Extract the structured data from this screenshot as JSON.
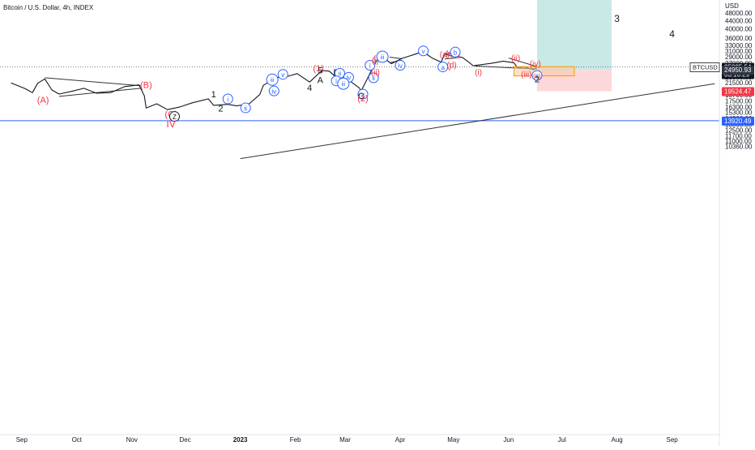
{
  "header": {
    "symbol_title": "Bitcoin / U.S. Dollar, 4h, INDEX"
  },
  "colors": {
    "price_line": "#131722",
    "wave_red": "#f23645",
    "wave_blue": "#2962ff",
    "target_fill": "#b2dfdb",
    "stop_fill": "#fccbcd",
    "box_fill": "#f7c8a3",
    "box_border": "#ff9800",
    "hline_blue": "#2962ff",
    "current_price_bg": "#131722",
    "entry_bg": "#2f3645",
    "stop_bg": "#f23645",
    "hline_bg": "#2962ff"
  },
  "chart_data": {
    "type": "line",
    "ticker_badge": "BTCUSD",
    "y_axis_unit": "USD",
    "y_scale": "log",
    "y_ticks": [
      "48000.00",
      "44000.00",
      "40000.00",
      "36000.00",
      "33000.00",
      "31000.00",
      "29000.00",
      "27000.00",
      "25000.00",
      "23000.00",
      "21500.00",
      "19900.00",
      "18700.00",
      "17500.00",
      "16300.00",
      "15300.00",
      "14300.00",
      "13300.00",
      "12500.00",
      "11700.00",
      "11000.00",
      "10360.00"
    ],
    "x_ticks": [
      "Sep",
      "Oct",
      "Nov",
      "Dec",
      "2023",
      "Feb",
      "Mar",
      "Apr",
      "May",
      "Jun",
      "Jul",
      "Aug",
      "Sep"
    ],
    "price_labels": {
      "current": {
        "value": "25835.54",
        "countdown": "03:10:29"
      },
      "entry": "24950.93",
      "stop": "19524.47",
      "hline": "13920.49"
    },
    "series": [
      {
        "values": [
          {
            "x": "2022-08-25",
            "y": 21500
          },
          {
            "x": "2022-09-02",
            "y": 20100
          },
          {
            "x": "2022-09-06",
            "y": 19200
          },
          {
            "x": "2022-09-09",
            "y": 21400
          },
          {
            "x": "2022-09-13",
            "y": 22500
          },
          {
            "x": "2022-09-17",
            "y": 19800
          },
          {
            "x": "2022-09-21",
            "y": 18900
          },
          {
            "x": "2022-09-28",
            "y": 19500
          },
          {
            "x": "2022-10-05",
            "y": 20200
          },
          {
            "x": "2022-10-12",
            "y": 19100
          },
          {
            "x": "2022-10-20",
            "y": 19200
          },
          {
            "x": "2022-10-28",
            "y": 20600
          },
          {
            "x": "2022-11-05",
            "y": 21000
          },
          {
            "x": "2022-11-08",
            "y": 18500
          },
          {
            "x": "2022-11-09",
            "y": 16100
          },
          {
            "x": "2022-11-15",
            "y": 16900
          },
          {
            "x": "2022-11-21",
            "y": 15800
          },
          {
            "x": "2022-11-28",
            "y": 16300
          },
          {
            "x": "2022-12-05",
            "y": 17100
          },
          {
            "x": "2022-12-14",
            "y": 17900
          },
          {
            "x": "2022-12-17",
            "y": 16600
          },
          {
            "x": "2022-12-25",
            "y": 16800
          },
          {
            "x": "2022-12-30",
            "y": 16500
          },
          {
            "x": "2023-01-06",
            "y": 16900
          },
          {
            "x": "2023-01-12",
            "y": 18800
          },
          {
            "x": "2023-01-14",
            "y": 20900
          },
          {
            "x": "2023-01-21",
            "y": 22800
          },
          {
            "x": "2023-01-28",
            "y": 23200
          },
          {
            "x": "2023-02-02",
            "y": 23900
          },
          {
            "x": "2023-02-09",
            "y": 21700
          },
          {
            "x": "2023-02-16",
            "y": 24800
          },
          {
            "x": "2023-02-20",
            "y": 24600
          },
          {
            "x": "2023-02-24",
            "y": 22900
          },
          {
            "x": "2023-02-28",
            "y": 23500
          },
          {
            "x": "2023-03-03",
            "y": 22200
          },
          {
            "x": "2023-03-09",
            "y": 20300
          },
          {
            "x": "2023-03-10",
            "y": 19600
          },
          {
            "x": "2023-03-13",
            "y": 22100
          },
          {
            "x": "2023-03-16",
            "y": 25000
          },
          {
            "x": "2023-03-19",
            "y": 28000
          },
          {
            "x": "2023-03-23",
            "y": 28500
          },
          {
            "x": "2023-03-27",
            "y": 26800
          },
          {
            "x": "2023-04-02",
            "y": 28500
          },
          {
            "x": "2023-04-11",
            "y": 30200
          },
          {
            "x": "2023-04-14",
            "y": 30700
          },
          {
            "x": "2023-04-19",
            "y": 28600
          },
          {
            "x": "2023-04-24",
            "y": 27300
          },
          {
            "x": "2023-04-26",
            "y": 29900
          },
          {
            "x": "2023-04-30",
            "y": 29300
          },
          {
            "x": "2023-05-06",
            "y": 28800
          },
          {
            "x": "2023-05-10",
            "y": 27100
          },
          {
            "x": "2023-05-12",
            "y": 26200
          },
          {
            "x": "2023-05-22",
            "y": 26900
          },
          {
            "x": "2023-05-29",
            "y": 27600
          },
          {
            "x": "2023-06-04",
            "y": 27100
          },
          {
            "x": "2023-06-06",
            "y": 25600
          },
          {
            "x": "2023-06-10",
            "y": 25800
          },
          {
            "x": "2023-06-15",
            "y": 25000
          },
          {
            "x": "2023-06-17",
            "y": 25800
          }
        ]
      }
    ],
    "trendlines": [
      {
        "points": [
          {
            "x": "2022-09-13",
            "y": 22800
          },
          {
            "x": "2022-11-06",
            "y": 20800
          }
        ]
      },
      {
        "points": [
          {
            "x": "2022-09-21",
            "y": 18400
          },
          {
            "x": "2022-11-06",
            "y": 20200
          }
        ]
      },
      {
        "points": [
          {
            "x": "2023-03-26",
            "y": 28900
          },
          {
            "x": "2023-04-02",
            "y": 28400
          }
        ]
      },
      {
        "points": [
          {
            "x": "2023-03-26",
            "y": 27100
          },
          {
            "x": "2023-04-02",
            "y": 27900
          }
        ]
      },
      {
        "points": [
          {
            "x": "2023-04-26",
            "y": 30200
          },
          {
            "x": "2023-05-03",
            "y": 29900
          }
        ]
      },
      {
        "points": [
          {
            "x": "2023-04-26",
            "y": 28300
          },
          {
            "x": "2023-05-03",
            "y": 28700
          }
        ]
      },
      {
        "points": [
          {
            "x": "2023-05-13",
            "y": 26100
          },
          {
            "x": "2023-06-17",
            "y": 25200
          }
        ]
      },
      {
        "points": [
          {
            "x": "2023-06-01",
            "y": 28600
          },
          {
            "x": "2023-06-17",
            "y": 25900
          }
        ]
      },
      {
        "points": [
          {
            "x": "2023-01-01",
            "y": 9000
          },
          {
            "x": "2023-09-25",
            "y": 21300
          }
        ]
      }
    ],
    "position": {
      "start": "2023-06-17",
      "end": "2023-07-29",
      "entry": 24950.93,
      "target": 58000,
      "stop": 19524.47
    },
    "highlight_box": {
      "x0": "2023-06-04",
      "x1": "2023-07-08",
      "y0": 23300,
      "y1": 25900
    },
    "horizontal_line": 13920.49,
    "dotted_price_line": 25835.54,
    "annotations": [
      {
        "text": "(A)",
        "x": "2022-09-12",
        "y": 17700,
        "color": "red",
        "circle": false,
        "size": 11
      },
      {
        "text": "(B)",
        "x": "2022-11-09",
        "y": 21000,
        "color": "red",
        "circle": false,
        "size": 11
      },
      {
        "text": "(C)",
        "x": "2022-11-23",
        "y": 15000,
        "color": "red",
        "circle": false,
        "size": 11
      },
      {
        "text": "Z",
        "x": "2022-11-25",
        "y": 14550,
        "color": "black",
        "circle": true,
        "size": 11
      },
      {
        "text": "IV",
        "x": "2022-11-23",
        "y": 13400,
        "color": "red",
        "circle": false,
        "size": 12
      },
      {
        "text": "1",
        "x": "2022-12-17",
        "y": 18900,
        "color": "black",
        "circle": false,
        "size": 11
      },
      {
        "text": "i",
        "x": "2022-12-25",
        "y": 17800,
        "color": "blue",
        "circle": true,
        "size": 10
      },
      {
        "text": "2",
        "x": "2022-12-21",
        "y": 16000,
        "color": "black",
        "circle": false,
        "size": 11
      },
      {
        "text": "ii",
        "x": "2023-01-04",
        "y": 16050,
        "color": "blue",
        "circle": true,
        "size": 9
      },
      {
        "text": "iv",
        "x": "2023-01-20",
        "y": 19500,
        "color": "blue",
        "circle": true,
        "size": 9
      },
      {
        "text": "iii",
        "x": "2023-01-19",
        "y": 22200,
        "color": "blue",
        "circle": true,
        "size": 9
      },
      {
        "text": "3",
        "x": "2023-01-25",
        "y": 24000,
        "color": "black",
        "circle": false,
        "size": 11
      },
      {
        "text": "v",
        "x": "2023-01-25",
        "y": 23600,
        "color": "blue",
        "circle": true,
        "size": 9
      },
      {
        "text": "4",
        "x": "2023-02-09",
        "y": 20300,
        "color": "black",
        "circle": false,
        "size": 11
      },
      {
        "text": "(1)",
        "x": "2023-02-14",
        "y": 25400,
        "color": "red",
        "circle": false,
        "size": 11
      },
      {
        "text": "5",
        "x": "2023-02-15",
        "y": 24800,
        "color": "black",
        "circle": false,
        "size": 11
      },
      {
        "text": "A",
        "x": "2023-02-15",
        "y": 22200,
        "color": "black",
        "circle": false,
        "size": 11
      },
      {
        "text": "B",
        "x": "2023-02-24",
        "y": 24300,
        "color": "black",
        "circle": false,
        "size": 11
      },
      {
        "text": "ii",
        "x": "2023-02-26",
        "y": 23900,
        "color": "blue",
        "circle": true,
        "size": 9
      },
      {
        "text": "iv",
        "x": "2023-03-03",
        "y": 22800,
        "color": "blue",
        "circle": true,
        "size": 9
      },
      {
        "text": "i",
        "x": "2023-02-24",
        "y": 21900,
        "color": "blue",
        "circle": true,
        "size": 9
      },
      {
        "text": "iii",
        "x": "2023-02-28",
        "y": 21200,
        "color": "blue",
        "circle": true,
        "size": 9
      },
      {
        "text": "v",
        "x": "2023-03-11",
        "y": 18800,
        "color": "blue",
        "circle": true,
        "size": 9
      },
      {
        "text": "C",
        "x": "2023-03-10",
        "y": 18500,
        "color": "black",
        "circle": false,
        "size": 11
      },
      {
        "text": "(2)",
        "x": "2023-03-11",
        "y": 18000,
        "color": "red",
        "circle": false,
        "size": 11
      },
      {
        "text": "i",
        "x": "2023-03-15",
        "y": 26200,
        "color": "blue",
        "circle": true,
        "size": 9
      },
      {
        "text": "ii",
        "x": "2023-03-17",
        "y": 22700,
        "color": "blue",
        "circle": true,
        "size": 9
      },
      {
        "text": "(i)",
        "x": "2023-03-18",
        "y": 27800,
        "color": "red",
        "circle": false,
        "size": 10
      },
      {
        "text": "(ii)",
        "x": "2023-03-18",
        "y": 24300,
        "color": "red",
        "circle": false,
        "size": 10
      },
      {
        "text": "(iii)",
        "x": "2023-03-20",
        "y": 28500,
        "color": "red",
        "circle": false,
        "size": 10
      },
      {
        "text": "iii",
        "x": "2023-03-22",
        "y": 28900,
        "color": "blue",
        "circle": true,
        "size": 9
      },
      {
        "text": "iv",
        "x": "2023-04-01",
        "y": 26200,
        "color": "blue",
        "circle": true,
        "size": 9
      },
      {
        "text": "1",
        "x": "2023-04-14",
        "y": 31800,
        "color": "black",
        "circle": false,
        "size": 11
      },
      {
        "text": "v",
        "x": "2023-04-14",
        "y": 30900,
        "color": "blue",
        "circle": true,
        "size": 9
      },
      {
        "text": "(a)",
        "x": "2023-04-26",
        "y": 29900,
        "color": "red",
        "circle": false,
        "size": 10
      },
      {
        "text": "(c)",
        "x": "2023-04-29",
        "y": 30100,
        "color": "red",
        "circle": false,
        "size": 10
      },
      {
        "text": "(e)",
        "x": "2023-05-02",
        "y": 29900,
        "color": "red",
        "circle": false,
        "size": 10
      },
      {
        "text": "b",
        "x": "2023-05-02",
        "y": 30500,
        "color": "blue",
        "circle": true,
        "size": 9
      },
      {
        "text": "(b)",
        "x": "2023-04-27",
        "y": 26100,
        "color": "red",
        "circle": false,
        "size": 10
      },
      {
        "text": "(d)",
        "x": "2023-04-30",
        "y": 26500,
        "color": "red",
        "circle": false,
        "size": 10
      },
      {
        "text": "a",
        "x": "2023-04-25",
        "y": 25700,
        "color": "blue",
        "circle": true,
        "size": 9
      },
      {
        "text": "(i)",
        "x": "2023-05-15",
        "y": 24300,
        "color": "red",
        "circle": false,
        "size": 10
      },
      {
        "text": "(ii)",
        "x": "2023-06-05",
        "y": 28600,
        "color": "red",
        "circle": false,
        "size": 10
      },
      {
        "text": "(iv)",
        "x": "2023-06-16",
        "y": 26800,
        "color": "red",
        "circle": false,
        "size": 10
      },
      {
        "text": "(iii)",
        "x": "2023-06-11",
        "y": 23800,
        "color": "red",
        "circle": false,
        "size": 10
      },
      {
        "text": "c",
        "x": "2023-06-17",
        "y": 23300,
        "color": "blue",
        "circle": true,
        "size": 9
      },
      {
        "text": "(v)",
        "x": "2023-06-17",
        "y": 23300,
        "color": "red",
        "circle": false,
        "size": 8
      },
      {
        "text": "2",
        "x": "2023-06-17",
        "y": 22400,
        "color": "black",
        "circle": false,
        "size": 11
      },
      {
        "text": "3",
        "x": "2023-08-01",
        "y": 45000,
        "color": "black",
        "circle": false,
        "size": 12
      },
      {
        "text": "4",
        "x": "2023-09-01",
        "y": 37800,
        "color": "black",
        "circle": false,
        "size": 12
      }
    ]
  }
}
